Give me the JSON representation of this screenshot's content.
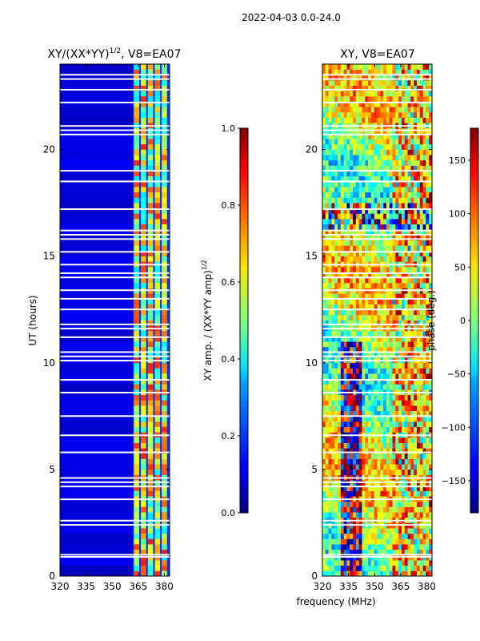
{
  "figure_title": "2022-04-03 0.0-24.0",
  "shared_xlabel": "frequency (MHz)",
  "chart_data": [
    {
      "type": "heatmap",
      "id": "amp",
      "title": "XY/(XX*YY)",
      "title_sup": "1/2",
      "title_suffix": ", V8=EA07",
      "xlim": [
        320,
        383
      ],
      "ylim": [
        0,
        24
      ],
      "xticks": [
        320,
        335,
        350,
        365,
        380
      ],
      "yticks": [
        0,
        5,
        10,
        15,
        20
      ],
      "ylabel": "UT (hours)",
      "colormap": "jet",
      "bands": [
        {
          "from": 320,
          "to": 362,
          "level": 0.1
        },
        {
          "from": 362,
          "to": 383,
          "level": 0.5
        }
      ],
      "band_channels": [
        364,
        368,
        372,
        376,
        380
      ],
      "blank_times_hours": [
        0.9,
        1.0,
        2.4,
        2.6,
        3.6,
        4.2,
        4.4,
        4.6,
        5.8,
        6.6,
        7.5,
        8.6,
        9.2,
        10.1,
        10.3,
        10.5,
        11.2,
        11.6,
        11.8,
        12.5,
        13.0,
        13.4,
        14.0,
        14.2,
        14.6,
        15.2,
        15.8,
        16.0,
        16.2,
        17.2,
        18.5,
        19.0,
        20.7,
        20.9,
        21.1,
        22.2,
        22.8,
        23.3,
        23.5
      ],
      "colorbar": {
        "range": [
          0.0,
          1.0
        ],
        "ticks": [
          "0.0",
          "0.2",
          "0.4",
          "0.6",
          "0.8",
          "1.0"
        ],
        "tick_values": [
          0.0,
          0.2,
          0.4,
          0.6,
          0.8,
          1.0
        ],
        "label": "XY amp. / (XX*YY amp)",
        "label_sup": "1/2"
      }
    },
    {
      "type": "heatmap",
      "id": "phase",
      "title": "XY, V8=EA07",
      "xlim": [
        320,
        383
      ],
      "ylim": [
        0,
        24
      ],
      "xticks": [
        320,
        335,
        350,
        365,
        380
      ],
      "yticks": [
        0,
        5,
        10,
        15,
        20
      ],
      "colormap": "jet",
      "value_range_deg": [
        -180,
        180
      ],
      "blank_times_hours": [
        0.9,
        1.0,
        2.4,
        2.6,
        3.6,
        4.2,
        4.4,
        4.6,
        5.8,
        6.6,
        7.5,
        8.6,
        9.2,
        10.1,
        10.3,
        10.5,
        11.2,
        11.6,
        11.8,
        12.5,
        13.0,
        13.4,
        14.0,
        14.2,
        14.6,
        15.2,
        15.8,
        16.0,
        16.2,
        17.2,
        18.5,
        19.0,
        20.7,
        20.9,
        21.1,
        22.2,
        22.8,
        23.3,
        23.5
      ],
      "colorbar": {
        "range": [
          -180,
          180
        ],
        "ticks": [
          "150",
          "100",
          "50",
          "0",
          "−50",
          "−100",
          "−150"
        ],
        "tick_values": [
          150,
          100,
          50,
          0,
          -50,
          -100,
          -150
        ],
        "label": "phase (deg.)"
      }
    }
  ]
}
